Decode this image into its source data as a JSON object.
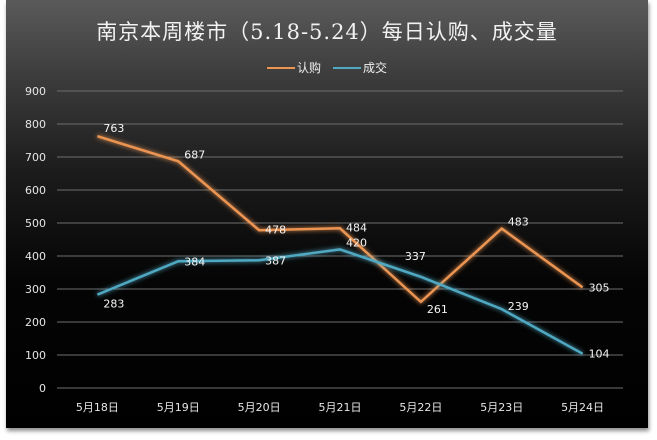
{
  "title": "南京本周楼市（5.18-5.24）每日认购、成交量",
  "legend": [
    {
      "label": "认购",
      "color": "#ec9552"
    },
    {
      "label": "成交",
      "color": "#4fa9c2"
    }
  ],
  "chart_data": {
    "type": "line",
    "title": "南京本周楼市（5.18-5.24）每日认购、成交量",
    "xlabel": "",
    "ylabel": "",
    "categories": [
      "5月18日",
      "5月19日",
      "5月20日",
      "5月21日",
      "5月22日",
      "5月23日",
      "5月24日"
    ],
    "series": [
      {
        "name": "认购",
        "color": "#ec9552",
        "values": [
          763,
          687,
          478,
          484,
          261,
          483,
          305
        ]
      },
      {
        "name": "成交",
        "color": "#4fa9c2",
        "values": [
          283,
          384,
          387,
          420,
          337,
          239,
          104
        ]
      }
    ],
    "ylim": [
      0,
      900
    ],
    "yticks": [
      0,
      100,
      200,
      300,
      400,
      500,
      600,
      700,
      800,
      900
    ],
    "grid": true,
    "legend_position": "top"
  }
}
